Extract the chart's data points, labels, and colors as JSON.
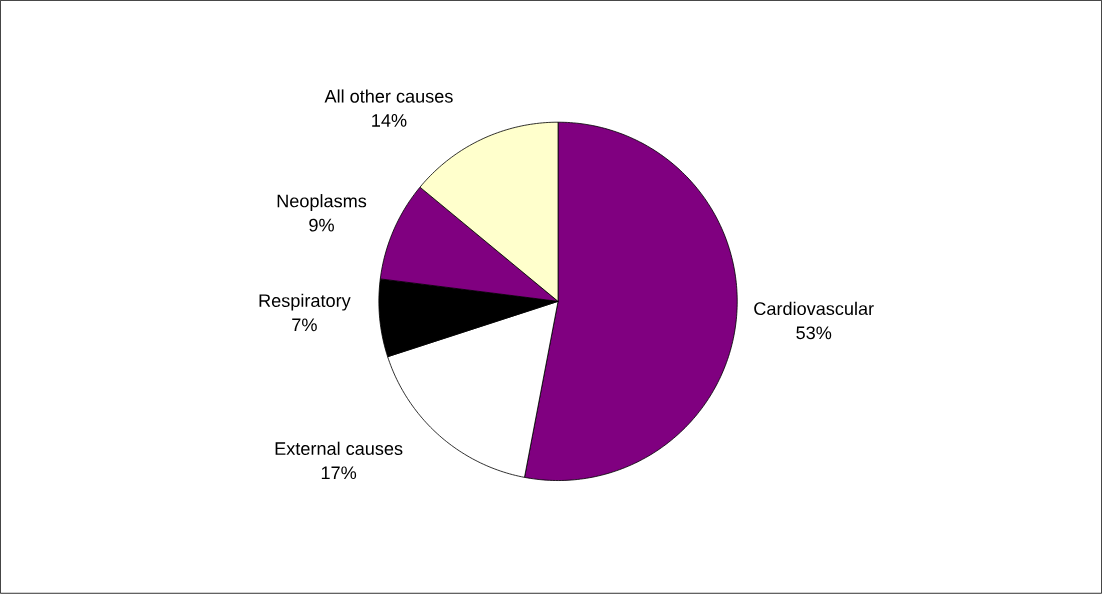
{
  "chart_data": {
    "type": "pie",
    "categories": [
      "Cardiovascular",
      "External causes",
      "Respiratory",
      "Neoplasms",
      "All other causes"
    ],
    "values": [
      53,
      17,
      7,
      9,
      14
    ],
    "value_labels": [
      "53%",
      "17%",
      "7%",
      "9%",
      "14%"
    ],
    "colors": [
      "#800080",
      "#ffffff",
      "#000000",
      "#800080",
      "#ffffcc"
    ]
  }
}
